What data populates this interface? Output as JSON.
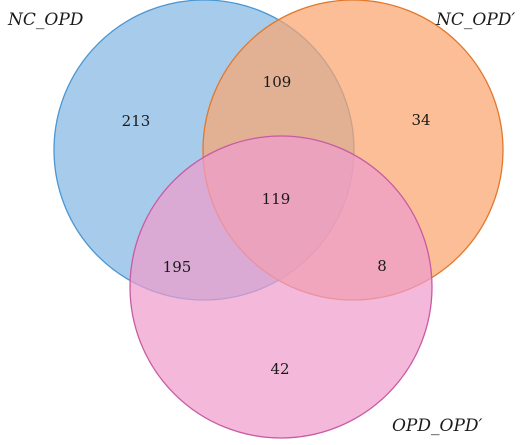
{
  "sets": [
    {
      "id": "A",
      "label": "NC_OPD",
      "fill": "#8ebde6",
      "stroke": "#4a97d2"
    },
    {
      "id": "B",
      "label": "NC_OPD′",
      "fill": "#f9a56f",
      "stroke": "#e2782c"
    },
    {
      "id": "C",
      "label": "OPD_OPD′",
      "fill": "#ef9dcc",
      "stroke": "#c85ba2"
    }
  ],
  "regions": {
    "A_only": "213",
    "AB": "109",
    "B_only": "34",
    "ABC": "119",
    "AC": "195",
    "BC": "8",
    "C_only": "42"
  }
}
